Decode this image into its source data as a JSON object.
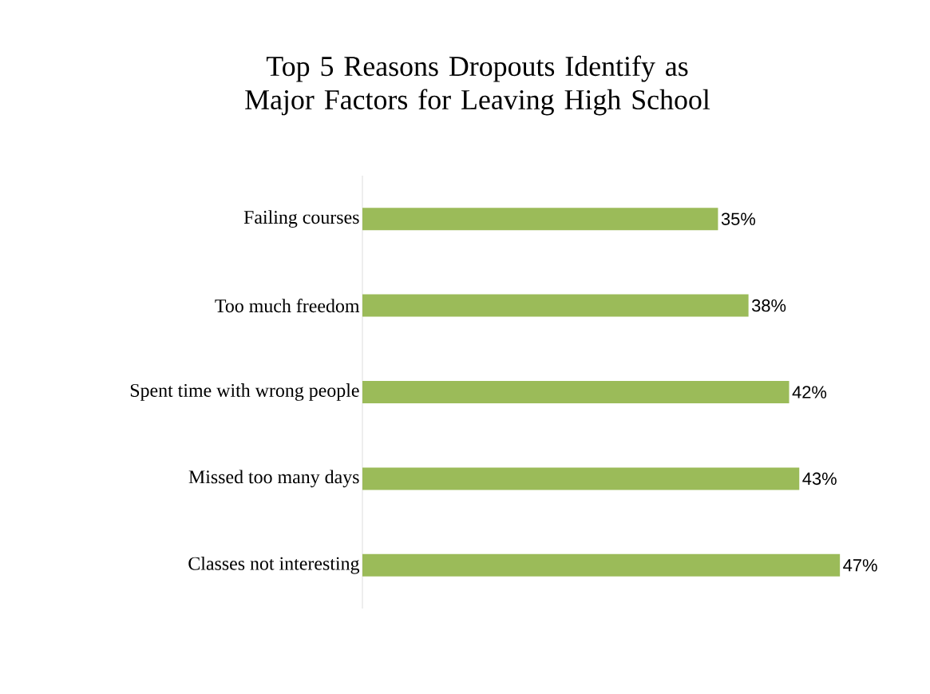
{
  "chart_data": {
    "type": "bar",
    "orientation": "horizontal",
    "title": "Top 5 Reasons Dropouts Identify as Major Factors for Leaving High School",
    "categories": [
      "Failing courses",
      "Too much freedom",
      "Spent time with wrong people",
      "Missed too many days",
      "Classes not interesting"
    ],
    "values": [
      35,
      38,
      42,
      43,
      47
    ],
    "value_labels": [
      "35%",
      "38%",
      "42%",
      "43%",
      "47%"
    ],
    "color": "#9bbb59"
  }
}
